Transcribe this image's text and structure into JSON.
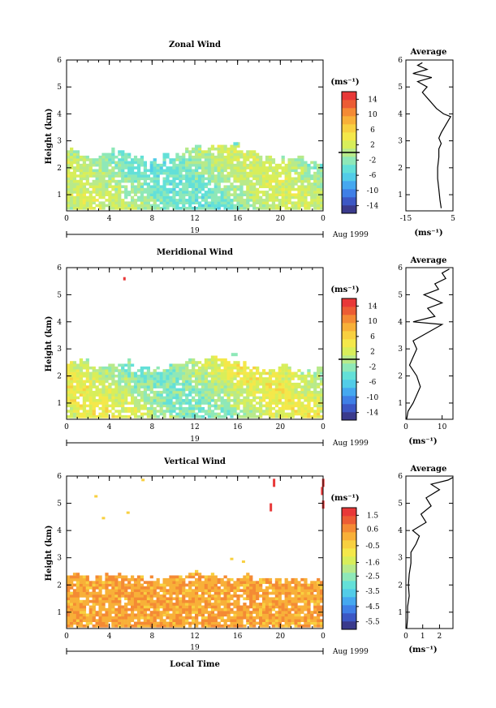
{
  "figure": {
    "date_label": "Aug 1999",
    "day_label": "19",
    "xlabel_bottom": "Local Time",
    "ylabel": "Height (km)",
    "unit_label": "(ms⁻¹)"
  },
  "palette": [
    "#3a3a8c",
    "#3c57c4",
    "#3f7fe6",
    "#45a8f0",
    "#52cce8",
    "#63e0d8",
    "#8ee8b8",
    "#b8ea8a",
    "#d8ee5a",
    "#f4e84a",
    "#f8d040",
    "#f8b038",
    "#f48a34",
    "#ec5c34",
    "#e83838"
  ],
  "chart_data": [
    {
      "type": "heatmap",
      "title": "Zonal Wind",
      "x_ticks": [
        "0",
        "4",
        "8",
        "12",
        "16",
        "20",
        "0"
      ],
      "y_ticks": [
        "1",
        "2",
        "3",
        "4",
        "5",
        "6"
      ],
      "xlim": [
        0,
        24
      ],
      "ylim": [
        0.4,
        6
      ],
      "colorbar": {
        "ticks": [
          "14",
          "10",
          "6",
          "2",
          "-2",
          "-6",
          "-10",
          "-14"
        ],
        "range": [
          -16,
          16
        ],
        "marker": 0
      },
      "echo_top_km": [
        2.6,
        2.5,
        2.4,
        2.5,
        2.6,
        2.5,
        2.3,
        2.1,
        2.2,
        2.4,
        2.5,
        2.6,
        2.7,
        2.7,
        2.8,
        2.8,
        2.7,
        2.5,
        2.3,
        2.2,
        2.3,
        2.4,
        2.2,
        2.1,
        2.0
      ],
      "value_range": [
        -5,
        3
      ],
      "profile": {
        "title": "Average",
        "xlim": [
          -15,
          5
        ],
        "x_ticks": [
          "-15",
          "5"
        ],
        "xlabel": "(ms⁻¹)",
        "height_km": [
          0.5,
          0.8,
          1.2,
          1.6,
          2.0,
          2.4,
          2.7,
          2.9,
          3.1,
          3.3,
          3.6,
          3.9,
          4.0,
          4.2,
          4.5,
          4.8,
          5.0,
          5.2,
          5.35,
          5.5,
          5.65,
          5.8,
          5.9
        ],
        "values": [
          0,
          -0.5,
          -1,
          -1.5,
          -1.5,
          -1,
          -1,
          0,
          -1,
          0,
          2,
          4,
          1,
          -2,
          -5,
          -8,
          -6,
          -10,
          -4,
          -12,
          -6,
          -10,
          -8
        ]
      }
    },
    {
      "type": "heatmap",
      "title": "Meridional Wind",
      "x_ticks": [
        "0",
        "4",
        "8",
        "12",
        "16",
        "20",
        "0"
      ],
      "y_ticks": [
        "1",
        "2",
        "3",
        "4",
        "5",
        "6"
      ],
      "xlim": [
        0,
        24
      ],
      "ylim": [
        0.4,
        6
      ],
      "colorbar": {
        "ticks": [
          "14",
          "10",
          "6",
          "2",
          "-2",
          "-6",
          "-10",
          "-14"
        ],
        "range": [
          -16,
          16
        ],
        "marker": 0
      },
      "echo_top_km": [
        2.4,
        2.5,
        2.3,
        2.3,
        2.4,
        2.5,
        2.3,
        2.2,
        2.2,
        2.3,
        2.4,
        2.5,
        2.5,
        2.6,
        2.6,
        2.5,
        2.4,
        2.3,
        2.2,
        2.2,
        2.3,
        2.2,
        2.1,
        2.2,
        2.1
      ],
      "value_range": [
        -4,
        5
      ],
      "profile": {
        "title": "Average",
        "xlim": [
          0,
          13
        ],
        "x_ticks": [
          "0",
          "10"
        ],
        "xlabel": "(ms⁻¹)",
        "height_km": [
          0.4,
          0.7,
          1.0,
          1.3,
          1.6,
          2.0,
          2.4,
          2.7,
          3.0,
          3.3,
          3.6,
          3.9,
          4.0,
          4.2,
          4.5,
          4.7,
          5.0,
          5.2,
          5.4,
          5.6,
          5.8,
          5.95
        ],
        "values": [
          0.2,
          0.6,
          2,
          3,
          4,
          3,
          1,
          2,
          3,
          2,
          6,
          10,
          2,
          8,
          6,
          10,
          5,
          9,
          8,
          11,
          10,
          12
        ]
      }
    },
    {
      "type": "heatmap",
      "title": "Vertical Wind",
      "x_ticks": [
        "0",
        "4",
        "8",
        "12",
        "16",
        "20",
        "0"
      ],
      "y_ticks": [
        "1",
        "2",
        "3",
        "4",
        "5",
        "6"
      ],
      "xlim": [
        0,
        24
      ],
      "ylim": [
        0.4,
        6
      ],
      "colorbar": {
        "ticks": [
          "1.5",
          "0.6",
          "-0.5",
          "-1.6",
          "-2.5",
          "-3.5",
          "-4.5",
          "-5.5"
        ],
        "range": [
          -6,
          2
        ],
        "marker": null
      },
      "echo_top_km": [
        2.3,
        2.3,
        2.2,
        2.3,
        2.3,
        2.2,
        2.3,
        2.2,
        2.1,
        2.3,
        2.3,
        2.4,
        2.4,
        2.3,
        2.3,
        2.2,
        2.3,
        2.2,
        2.2,
        2.2,
        2.1,
        2.2,
        2.1,
        2.2,
        2.1
      ],
      "value_range": [
        -1.2,
        0.9
      ],
      "xlabel": "Local Time",
      "profile": {
        "title": "Average",
        "xlim": [
          0,
          2.8
        ],
        "x_ticks": [
          "0",
          "1",
          "2"
        ],
        "xlabel": "(ms⁻¹)",
        "height_km": [
          0.4,
          0.8,
          1.2,
          1.6,
          2.0,
          2.4,
          2.8,
          3.2,
          3.5,
          3.8,
          4.0,
          4.3,
          4.6,
          4.9,
          5.2,
          5.5,
          5.7,
          5.85,
          5.95
        ],
        "values": [
          0.05,
          0.1,
          0.1,
          0.2,
          0.15,
          0.2,
          0.3,
          0.3,
          0.6,
          0.8,
          0.4,
          1.2,
          0.9,
          1.5,
          1.2,
          2.0,
          1.5,
          2.5,
          2.8
        ]
      }
    }
  ]
}
